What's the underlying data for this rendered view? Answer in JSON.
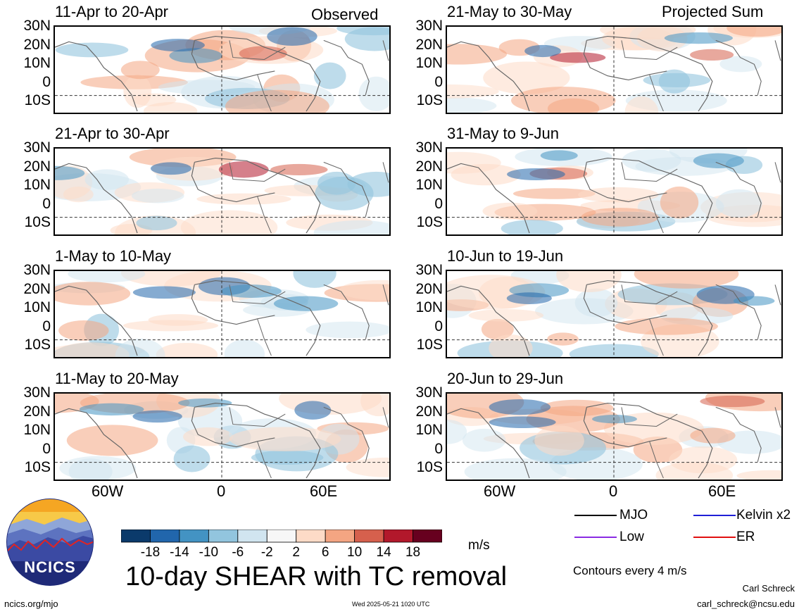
{
  "column_labels": {
    "left": "Observed",
    "right": "Projected Sum"
  },
  "lat_labels": [
    "30N",
    "20N",
    "10N",
    "0",
    "10S"
  ],
  "lon_labels": [
    "60W",
    "0",
    "60E"
  ],
  "panels": [
    {
      "title": "11-Apr to 20-Apr",
      "column": "left"
    },
    {
      "title": "21-Apr to 30-Apr",
      "column": "left"
    },
    {
      "title": "1-May to 10-May",
      "column": "left"
    },
    {
      "title": "11-May to 20-May",
      "column": "left"
    },
    {
      "title": "21-May to 30-May",
      "column": "right"
    },
    {
      "title": "31-May to 9-Jun",
      "column": "right"
    },
    {
      "title": "10-Jun to 19-Jun",
      "column": "right"
    },
    {
      "title": "20-Jun to 29-Jun",
      "column": "right"
    }
  ],
  "colorbar": {
    "colors": [
      "#0b3a6b",
      "#2166ac",
      "#4393c3",
      "#92c5de",
      "#d1e5f0",
      "#f7f7f7",
      "#fddbc7",
      "#f4a582",
      "#d6604d",
      "#b2182b",
      "#67001f"
    ],
    "labels": [
      "-18",
      "-14",
      "-10",
      "-6",
      "-2",
      "2",
      "6",
      "10",
      "14",
      "18"
    ],
    "units": "m/s"
  },
  "legend": {
    "items": [
      {
        "label": "MJO",
        "color": "#000000"
      },
      {
        "label": "Kelvin x2",
        "color": "#1f1fd6"
      },
      {
        "label": "Low",
        "color": "#8a2be2"
      },
      {
        "label": "ER",
        "color": "#e01010"
      }
    ],
    "contour_note": "Contours every 4 m/s"
  },
  "title": "10-day SHEAR with TC removal",
  "logo_text": "NCICS",
  "footer": {
    "url": "ncics.org/mjo",
    "timestamp": "Wed 2025-05-21 1020 UTC",
    "author": "Carl Schreck",
    "email": "carl_schreck@ncsu.edu"
  }
}
